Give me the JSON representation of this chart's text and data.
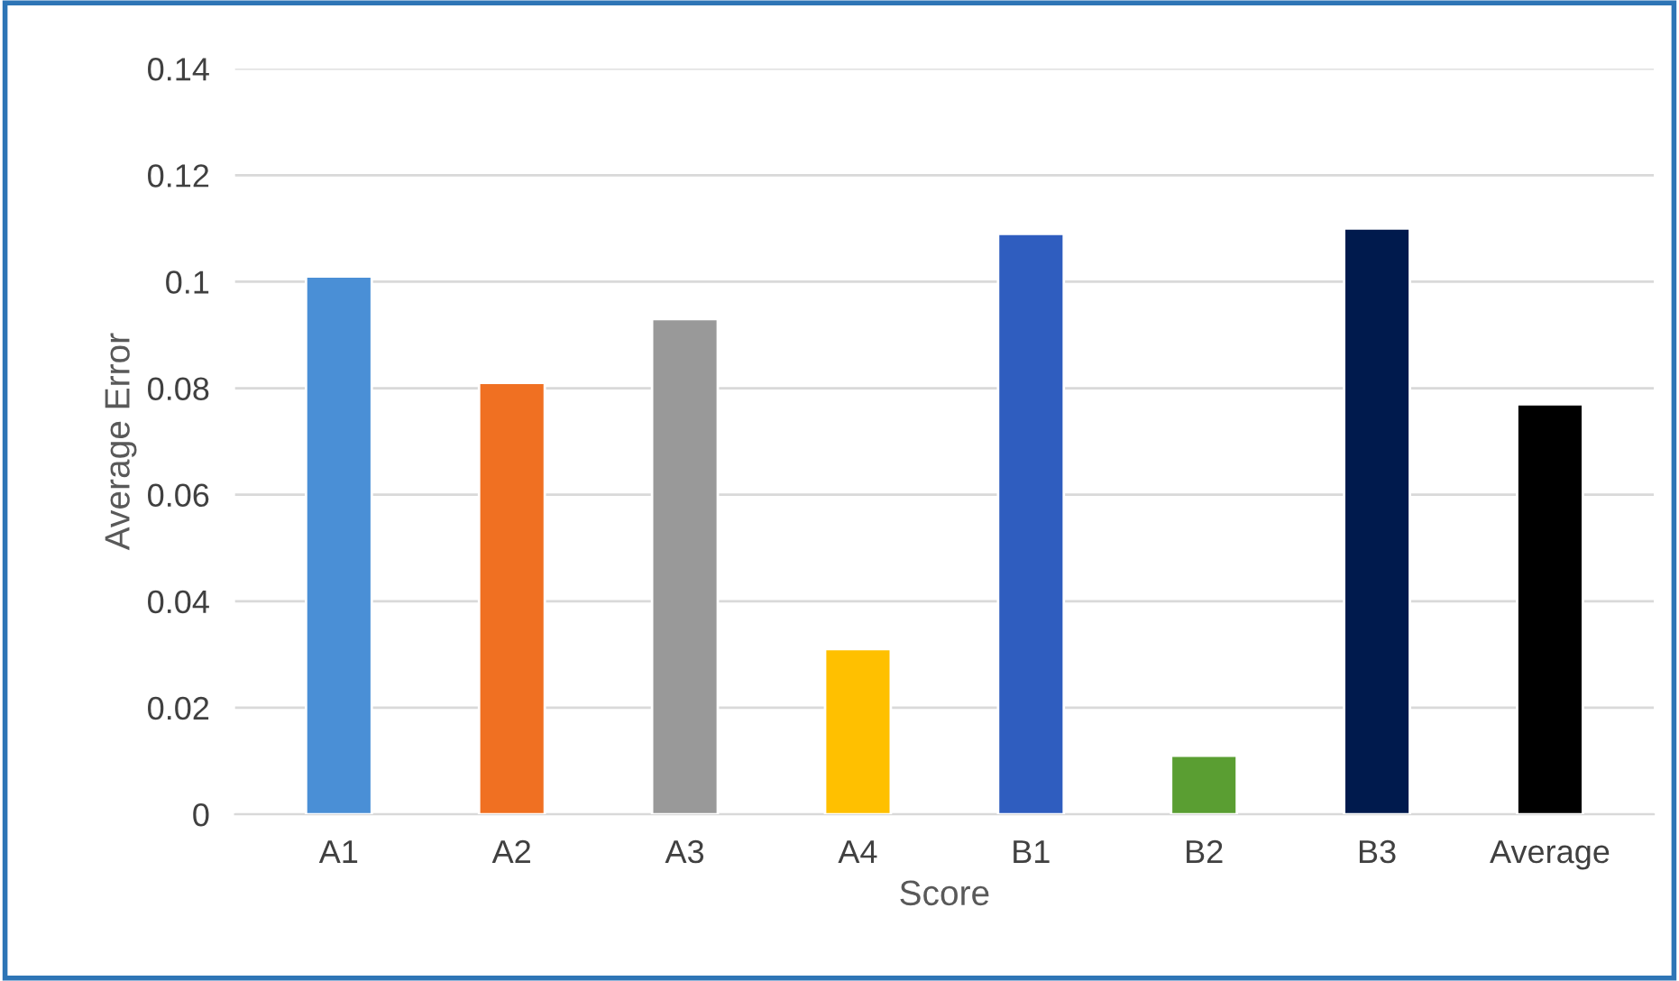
{
  "chart_data": {
    "type": "bar",
    "xlabel": "Score",
    "ylabel": "Average Error",
    "categories": [
      "A1",
      "A2",
      "A3",
      "A4",
      "B1",
      "B2",
      "B3",
      "Average"
    ],
    "values": [
      0.101,
      0.081,
      0.093,
      0.031,
      0.109,
      0.011,
      0.11,
      0.077
    ],
    "colors": [
      "#4a8fd6",
      "#f07022",
      "#999999",
      "#ffc000",
      "#2f5dbf",
      "#5a9e32",
      "#001a4d",
      "#000000"
    ],
    "ylim": [
      0,
      0.14
    ],
    "yticks": [
      {
        "value": 0,
        "label": "0"
      },
      0.02,
      0.04,
      0.06,
      0.08,
      {
        "value": 0.1,
        "label": "0.1"
      },
      0.12,
      0.14
    ],
    "grid": "y",
    "legend": false
  }
}
